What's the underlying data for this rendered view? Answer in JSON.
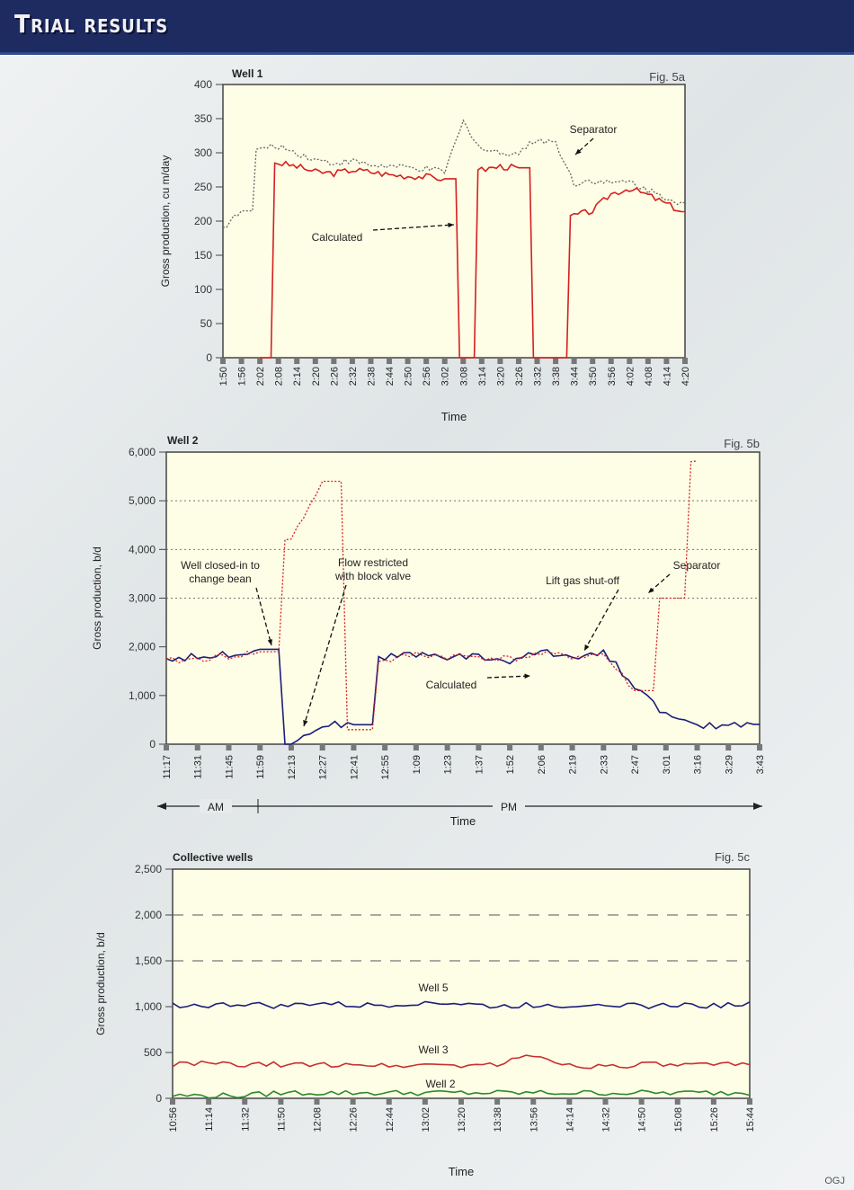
{
  "header": {
    "title": "Trial results"
  },
  "footer": {
    "credit": "OGJ"
  },
  "colors": {
    "header_bg": "#1d2b60",
    "plot_bg": "#fefde6",
    "calculated_red": "#d42020",
    "separator_dotted": "#666666",
    "well2_calculated_blue": "#1a1f7a",
    "well2_separator_red": "#d42020",
    "well3_red": "#c83030",
    "well5_blue": "#1a1f7a",
    "well2_green": "#2a8a2a"
  },
  "chart_data": [
    {
      "id": "fig5a",
      "type": "line",
      "title": "Well 1",
      "fig_label": "Fig. 5a",
      "xlabel": "Time",
      "ylabel": "Gross production, cu m/day",
      "ylim": [
        0,
        400
      ],
      "yticks": [
        0,
        50,
        100,
        150,
        200,
        250,
        300,
        350,
        400
      ],
      "ytick_labels": [
        "0",
        "50",
        "100",
        "150",
        "200",
        "250",
        "300",
        "350",
        "400"
      ],
      "categories": [
        "1:50",
        "1:56",
        "2:02",
        "2:08",
        "2:14",
        "2:20",
        "2:26",
        "2:32",
        "2:38",
        "2:44",
        "2:50",
        "2:56",
        "3:02",
        "3:08",
        "3:14",
        "3:20",
        "3:26",
        "3:32",
        "3:38",
        "3:44",
        "3:50",
        "3:56",
        "4:02",
        "4:08",
        "4:14",
        "4:20"
      ],
      "grid": false,
      "annotations": [
        {
          "text": "Calculated",
          "points_to": "calculated"
        },
        {
          "text": "Separator",
          "points_to": "separator"
        }
      ],
      "series": [
        {
          "name": "Calculated",
          "style": "solid",
          "color": "#d42020",
          "values": [
            null,
            null,
            0,
            285,
            280,
            272,
            270,
            275,
            272,
            268,
            266,
            265,
            262,
            0,
            275,
            280,
            278,
            0,
            0,
            208,
            215,
            240,
            248,
            238,
            225,
            212
          ]
        },
        {
          "name": "Separator",
          "style": "dotted",
          "color": "#666666",
          "values": [
            190,
            215,
            305,
            310,
            300,
            290,
            285,
            288,
            282,
            280,
            278,
            276,
            272,
            345,
            305,
            300,
            300,
            320,
            315,
            255,
            260,
            255,
            258,
            245,
            235,
            225
          ]
        }
      ]
    },
    {
      "id": "fig5b",
      "type": "line",
      "title": "Well 2",
      "fig_label": "Fig. 5b",
      "xlabel": "Time",
      "ylabel": "Gross production, b/d",
      "ylim": [
        0,
        6000
      ],
      "yticks": [
        0,
        1000,
        2000,
        3000,
        4000,
        5000,
        6000
      ],
      "ytick_labels": [
        "0",
        "1,000",
        "2,000",
        "3,000",
        "4,000",
        "5,000",
        "6,000"
      ],
      "categories": [
        "11:17",
        "11:31",
        "11:45",
        "11:59",
        "12:13",
        "12:27",
        "12:41",
        "12:55",
        "1:09",
        "1:23",
        "1:37",
        "1:52",
        "2:06",
        "2:19",
        "2:33",
        "2:47",
        "3:01",
        "3:16",
        "3:29",
        "3:43"
      ],
      "period_labels": [
        "AM",
        "PM"
      ],
      "grid": true,
      "grid_lines_at": [
        3000,
        4000,
        5000
      ],
      "annotations": [
        {
          "text": "Well closed-in to change bean"
        },
        {
          "text": "Flow restricted with block valve"
        },
        {
          "text": "Lift gas shut-off"
        },
        {
          "text": "Separator"
        },
        {
          "text": "Calculated"
        }
      ],
      "series": [
        {
          "name": "Calculated",
          "style": "solid",
          "color": "#1a1f7a",
          "values": [
            1750,
            1800,
            1850,
            1950,
            0,
            400,
            400,
            1800,
            1850,
            1800,
            1800,
            1700,
            1900,
            1800,
            1900,
            1200,
            600,
            350,
            400,
            450
          ]
        },
        {
          "name": "Separator",
          "style": "dotted",
          "color": "#d42020",
          "values": [
            1700,
            1750,
            1800,
            1900,
            4200,
            5400,
            300,
            1700,
            1850,
            1800,
            1800,
            1750,
            1850,
            1800,
            1850,
            1100,
            3000,
            5800,
            null,
            null
          ]
        }
      ]
    },
    {
      "id": "fig5c",
      "type": "line",
      "title": "Collective wells",
      "fig_label": "Fig. 5c",
      "xlabel": "Time",
      "ylabel": "Gross production, b/d",
      "ylim": [
        0,
        2500
      ],
      "yticks": [
        0,
        500,
        1000,
        1500,
        2000,
        2500
      ],
      "ytick_labels": [
        "0",
        "500",
        "1,000",
        "1,500",
        "2,000",
        "2,500"
      ],
      "categories": [
        "10:56",
        "11:14",
        "11:32",
        "11:50",
        "12:08",
        "12:26",
        "12:44",
        "13:02",
        "13:20",
        "13:38",
        "13:56",
        "14:14",
        "14:32",
        "14:50",
        "15:08",
        "15:26",
        "15:44"
      ],
      "grid": true,
      "grid_lines_at": [
        1500,
        2000
      ],
      "series": [
        {
          "name": "Well 5",
          "style": "solid",
          "color": "#1a1f7a",
          "values": [
            1020,
            1010,
            1030,
            1000,
            1040,
            1010,
            1020,
            1050,
            1030,
            1000,
            1020,
            1010,
            1040,
            1000,
            1020,
            1010,
            1030
          ]
        },
        {
          "name": "Well 3",
          "style": "solid",
          "color": "#c83030",
          "values": [
            370,
            380,
            360,
            370,
            360,
            380,
            350,
            370,
            360,
            370,
            470,
            360,
            350,
            370,
            360,
            360,
            370
          ]
        },
        {
          "name": "Well 2",
          "style": "solid",
          "color": "#2a8a2a",
          "values": [
            30,
            30,
            30,
            60,
            60,
            60,
            60,
            60,
            60,
            60,
            60,
            60,
            60,
            60,
            60,
            60,
            60
          ]
        }
      ]
    }
  ]
}
